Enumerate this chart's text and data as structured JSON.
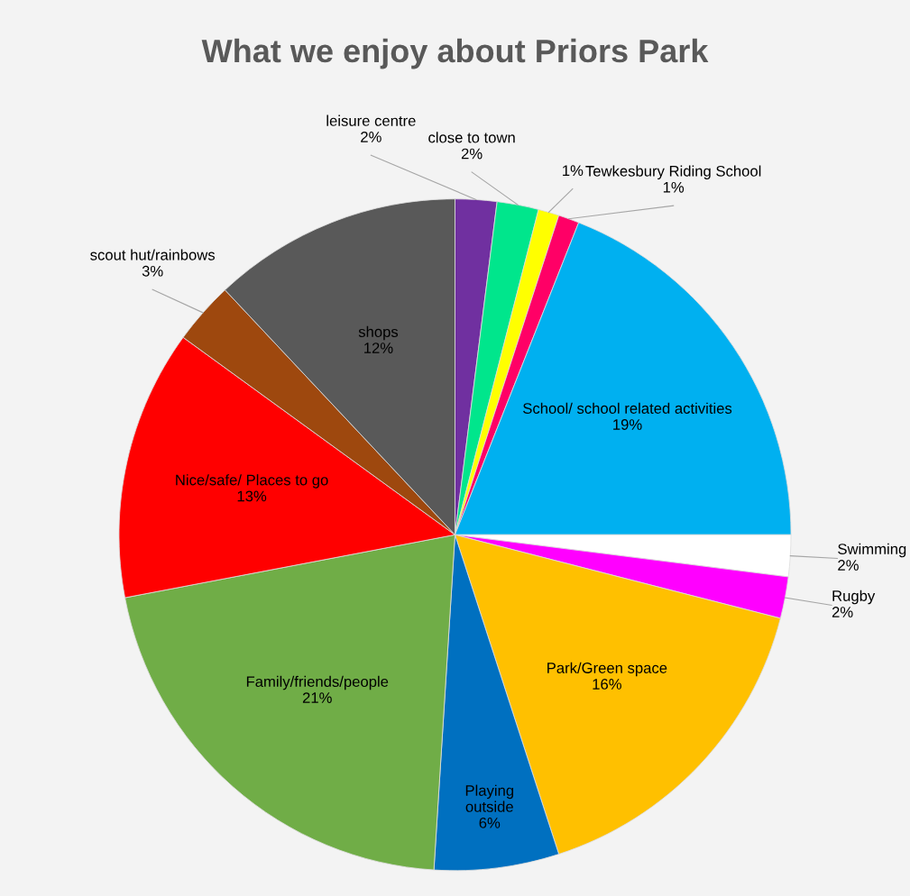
{
  "chart_data": {
    "type": "pie",
    "title": "What we enjoy about Priors Park",
    "categories": [
      "leisure centre",
      "close to town",
      null,
      "Tewkesbury Riding School",
      "School/ school related activities",
      "Swimming",
      "Rugby",
      "Park/Green space",
      "Playing outside",
      "Family/friends/people",
      "Nice/safe/ Places to go",
      "scout hut/rainbows",
      "shops"
    ],
    "values": [
      2,
      2,
      1,
      1,
      19,
      2,
      2,
      16,
      6,
      21,
      13,
      3,
      12
    ],
    "value_labels": [
      "2%",
      "2%",
      "1%",
      "1%",
      "19%",
      "2%",
      "2%",
      "16%",
      "6%",
      "21%",
      "13%",
      "3%",
      "12%"
    ],
    "colors": [
      "#7030a0",
      "#00e68c",
      "#ffff00",
      "#ff0066",
      "#00b0f0",
      "#ffffff",
      "#ff00ff",
      "#ffc000",
      "#0070c0",
      "#70ad47",
      "#ff0000",
      "#9e480e",
      "#595959"
    ]
  }
}
